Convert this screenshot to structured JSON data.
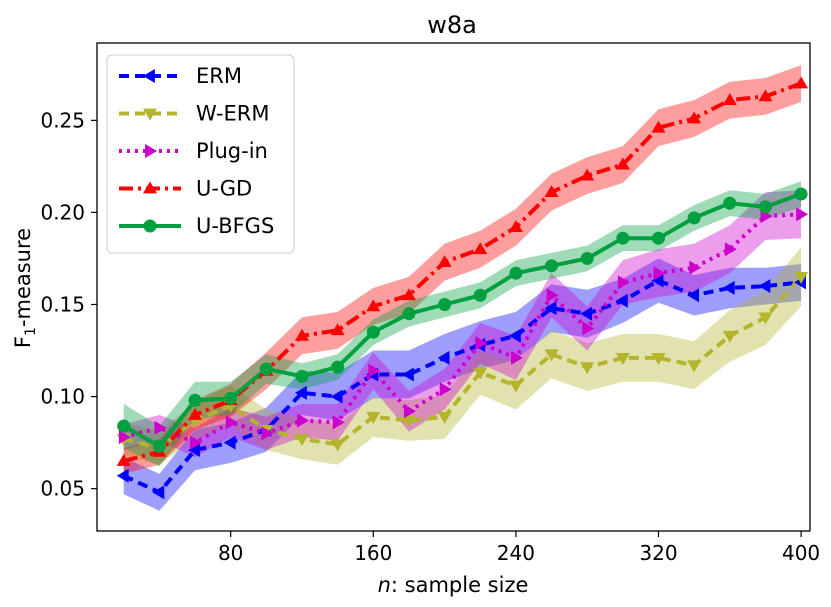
{
  "chart_data": {
    "type": "line",
    "title": "w8a",
    "xlabel_italic": "n",
    "xlabel_rest": ": sample size",
    "ylabel_main": "F",
    "ylabel_sub": "1",
    "ylabel_rest": "-measure",
    "xlim": [
      5,
      405
    ],
    "ylim": [
      0.027,
      0.292
    ],
    "xticks": [
      80,
      160,
      240,
      320,
      400
    ],
    "xtick_labels": [
      "80",
      "160",
      "240",
      "320",
      "400"
    ],
    "yticks": [
      0.05,
      0.1,
      0.15,
      0.2,
      0.25
    ],
    "ytick_labels": [
      "0.05",
      "0.10",
      "0.15",
      "0.20",
      "0.25"
    ],
    "grid": false,
    "legend_position": "top-left",
    "x": [
      20,
      40,
      60,
      80,
      100,
      120,
      140,
      160,
      180,
      200,
      220,
      240,
      260,
      280,
      300,
      320,
      340,
      360,
      380,
      400
    ],
    "series": [
      {
        "name": "ERM",
        "color": "#0000ff",
        "dash": "10,6",
        "marker": "triangle-left",
        "values": [
          0.057,
          0.048,
          0.071,
          0.075,
          0.082,
          0.102,
          0.1,
          0.112,
          0.112,
          0.121,
          0.128,
          0.133,
          0.148,
          0.145,
          0.152,
          0.163,
          0.155,
          0.159,
          0.16,
          0.162
        ],
        "band": [
          0.01,
          0.01,
          0.011,
          0.011,
          0.012,
          0.012,
          0.013,
          0.013,
          0.013,
          0.013,
          0.013,
          0.013,
          0.013,
          0.013,
          0.012,
          0.012,
          0.011,
          0.011,
          0.01,
          0.01
        ]
      },
      {
        "name": "W-ERM",
        "color": "#b4b42d",
        "dash": "10,6",
        "marker": "triangle-down",
        "values": [
          0.077,
          0.072,
          0.087,
          0.095,
          0.082,
          0.077,
          0.074,
          0.089,
          0.087,
          0.089,
          0.113,
          0.106,
          0.123,
          0.116,
          0.121,
          0.121,
          0.117,
          0.133,
          0.143,
          0.165
        ],
        "band": [
          0.009,
          0.009,
          0.01,
          0.011,
          0.011,
          0.011,
          0.011,
          0.011,
          0.011,
          0.012,
          0.012,
          0.013,
          0.013,
          0.013,
          0.013,
          0.013,
          0.013,
          0.014,
          0.015,
          0.016
        ]
      },
      {
        "name": "Plug-in",
        "color": "#cc00cc",
        "dash": "3,5",
        "marker": "triangle-right",
        "values": [
          0.078,
          0.083,
          0.075,
          0.086,
          0.08,
          0.087,
          0.086,
          0.114,
          0.092,
          0.104,
          0.129,
          0.121,
          0.155,
          0.137,
          0.162,
          0.167,
          0.17,
          0.18,
          0.198,
          0.199
        ],
        "band": [
          0.007,
          0.007,
          0.008,
          0.008,
          0.009,
          0.009,
          0.01,
          0.01,
          0.011,
          0.011,
          0.011,
          0.012,
          0.012,
          0.012,
          0.012,
          0.013,
          0.013,
          0.013,
          0.013,
          0.013
        ]
      },
      {
        "name": "U-GD",
        "color": "#ff0000",
        "dash": "14,5,3,5",
        "marker": "triangle-up",
        "values": [
          0.065,
          0.07,
          0.09,
          0.098,
          0.114,
          0.133,
          0.136,
          0.149,
          0.155,
          0.173,
          0.18,
          0.192,
          0.211,
          0.22,
          0.226,
          0.246,
          0.251,
          0.261,
          0.263,
          0.27
        ],
        "band": [
          0.007,
          0.007,
          0.008,
          0.009,
          0.01,
          0.01,
          0.01,
          0.01,
          0.01,
          0.01,
          0.01,
          0.01,
          0.01,
          0.01,
          0.01,
          0.01,
          0.01,
          0.01,
          0.01,
          0.01
        ]
      },
      {
        "name": "U-BFGS",
        "color": "#00a040",
        "dash": "",
        "marker": "circle",
        "values": [
          0.084,
          0.073,
          0.098,
          0.099,
          0.115,
          0.111,
          0.116,
          0.135,
          0.145,
          0.15,
          0.155,
          0.167,
          0.171,
          0.175,
          0.186,
          0.186,
          0.197,
          0.205,
          0.203,
          0.21
        ],
        "band": [
          0.012,
          0.011,
          0.01,
          0.009,
          0.008,
          0.007,
          0.007,
          0.007,
          0.007,
          0.007,
          0.007,
          0.007,
          0.007,
          0.007,
          0.007,
          0.007,
          0.007,
          0.007,
          0.007,
          0.007
        ]
      }
    ]
  }
}
